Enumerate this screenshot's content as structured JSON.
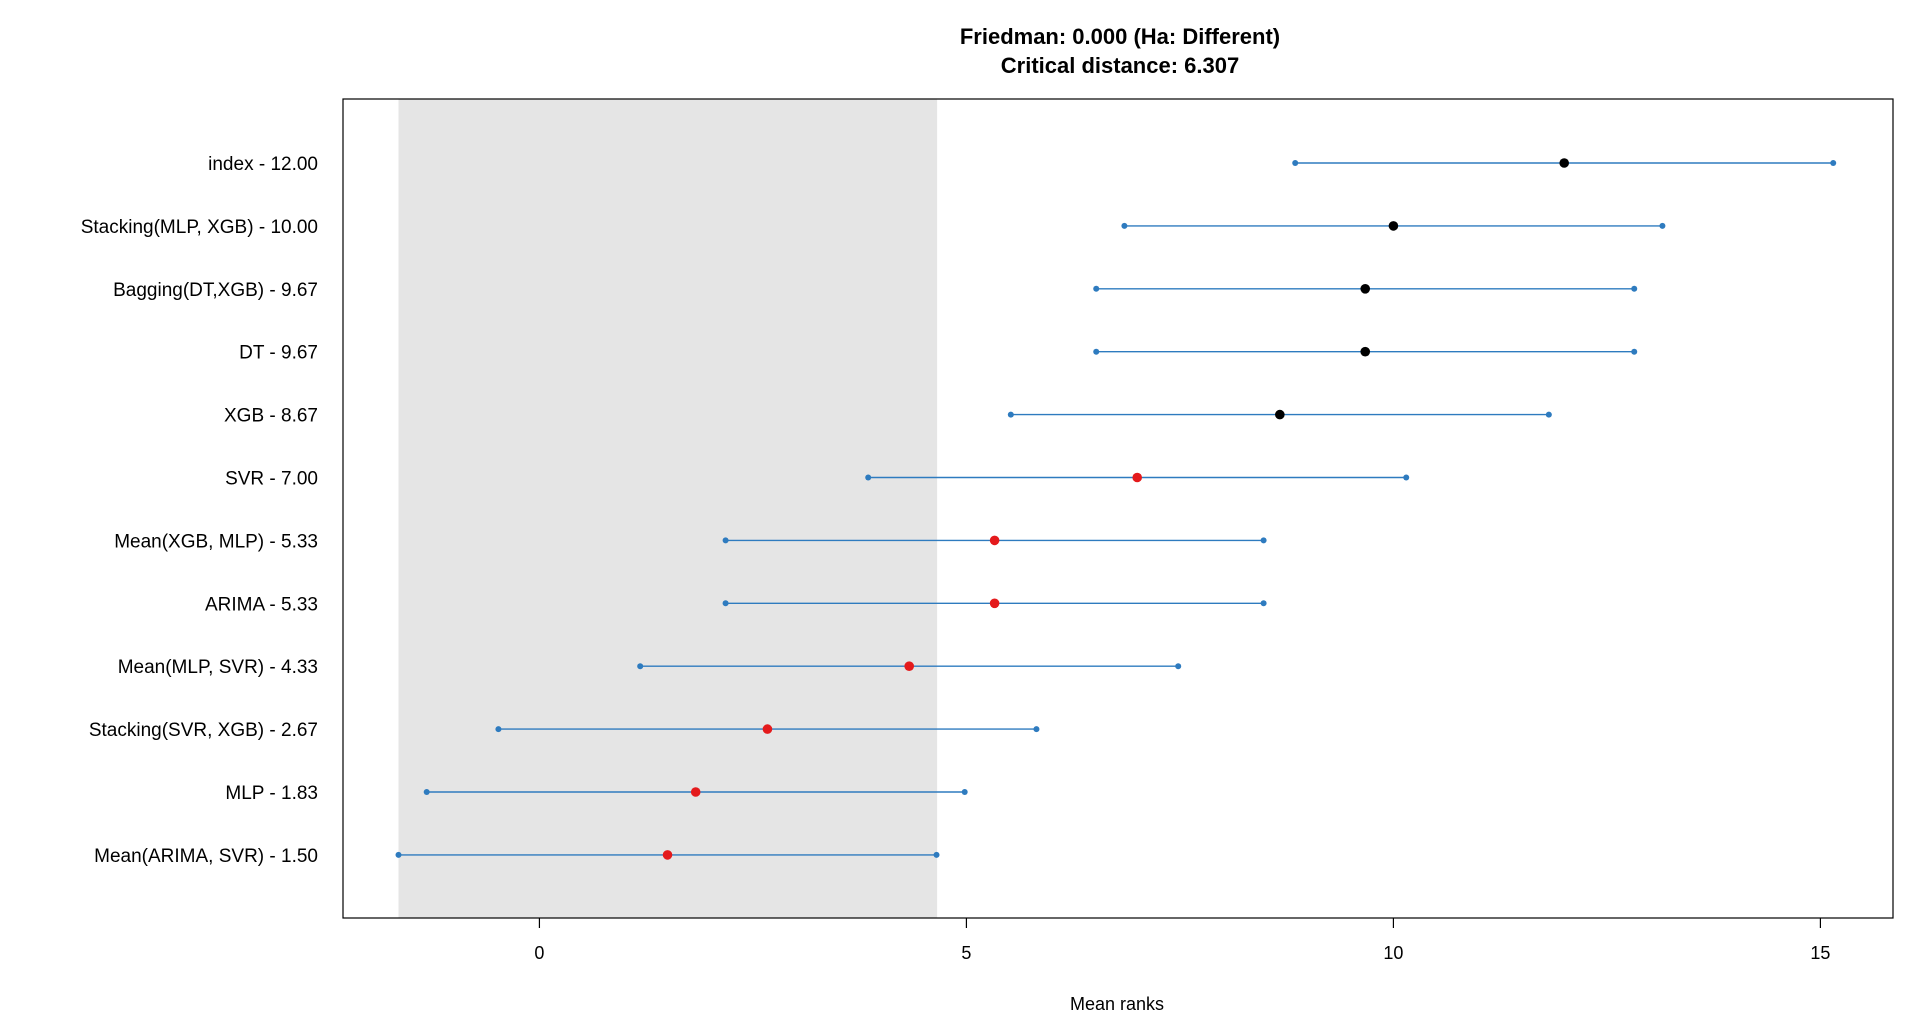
{
  "chart_data": {
    "type": "dot-interval",
    "title": "Friedman: 0.000 (Ha: Different)",
    "subtitle": "Critical distance: 6.307",
    "xlabel": "Mean ranks",
    "ylabel": "",
    "xlim": [
      -2.3,
      15.85
    ],
    "xticks": [
      0,
      5,
      10,
      15
    ],
    "grid": false,
    "critical_distance": 6.307,
    "shaded_region": [
      -1.65,
      4.657
    ],
    "colors": {
      "interval": "#2e7bbf",
      "significant_point": "#e41a1c",
      "non_significant_point": "#000000",
      "shade": "#e5e5e5"
    },
    "items": [
      {
        "label": "index - 12.00",
        "mean_rank": 12.0,
        "lower": 8.85,
        "upper": 15.15,
        "different": false
      },
      {
        "label": "Stacking(MLP, XGB) - 10.00",
        "mean_rank": 10.0,
        "lower": 6.85,
        "upper": 13.15,
        "different": false
      },
      {
        "label": "Bagging(DT,XGB) - 9.67",
        "mean_rank": 9.67,
        "lower": 6.52,
        "upper": 12.82,
        "different": false
      },
      {
        "label": "DT - 9.67",
        "mean_rank": 9.67,
        "lower": 6.52,
        "upper": 12.82,
        "different": false
      },
      {
        "label": "XGB - 8.67",
        "mean_rank": 8.67,
        "lower": 5.52,
        "upper": 11.82,
        "different": false
      },
      {
        "label": "SVR - 7.00",
        "mean_rank": 7.0,
        "lower": 3.85,
        "upper": 10.15,
        "different": true
      },
      {
        "label": "Mean(XGB, MLP) - 5.33",
        "mean_rank": 5.33,
        "lower": 2.18,
        "upper": 8.48,
        "different": true
      },
      {
        "label": "ARIMA - 5.33",
        "mean_rank": 5.33,
        "lower": 2.18,
        "upper": 8.48,
        "different": true
      },
      {
        "label": "Mean(MLP, SVR) - 4.33",
        "mean_rank": 4.33,
        "lower": 1.18,
        "upper": 7.48,
        "different": true
      },
      {
        "label": "Stacking(SVR, XGB) - 2.67",
        "mean_rank": 2.67,
        "lower": -0.48,
        "upper": 5.82,
        "different": true
      },
      {
        "label": "MLP - 1.83",
        "mean_rank": 1.83,
        "lower": -1.32,
        "upper": 4.98,
        "different": true
      },
      {
        "label": "Mean(ARIMA, SVR) - 1.50",
        "mean_rank": 1.5,
        "lower": -1.65,
        "upper": 4.65,
        "different": true
      }
    ]
  }
}
